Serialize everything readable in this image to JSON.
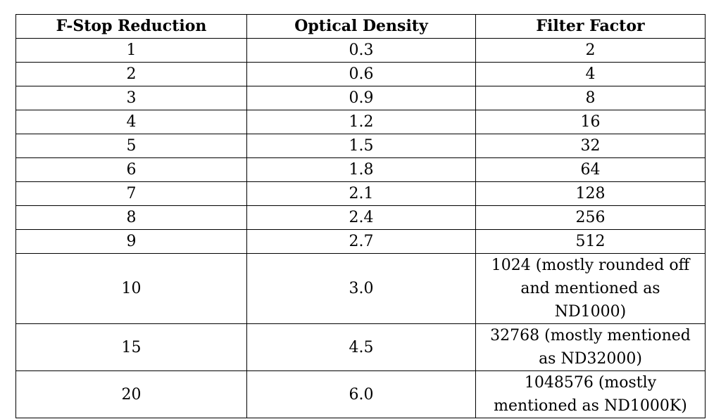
{
  "table": {
    "header": [
      "F-Stop Reduction",
      "Optical Density",
      "Filter Factor"
    ],
    "rows": [
      [
        "1",
        "0.3",
        "2"
      ],
      [
        "2",
        "0.6",
        "4"
      ],
      [
        "3",
        "0.9",
        "8"
      ],
      [
        "4",
        "1.2",
        "16"
      ],
      [
        "5",
        "1.5",
        "32"
      ],
      [
        "6",
        "1.8",
        "64"
      ],
      [
        "7",
        "2.1",
        "128"
      ],
      [
        "8",
        "2.4",
        "256"
      ],
      [
        "9",
        "2.7",
        "512"
      ],
      [
        "10",
        "3.0",
        "1024 (mostly rounded off and mentioned as ND1000)"
      ],
      [
        "15",
        "4.5",
        "32768  (mostly mentioned as ND32000)"
      ],
      [
        "20",
        "6.0",
        "1048576 (mostly mentioned as ND1000K)"
      ]
    ]
  }
}
